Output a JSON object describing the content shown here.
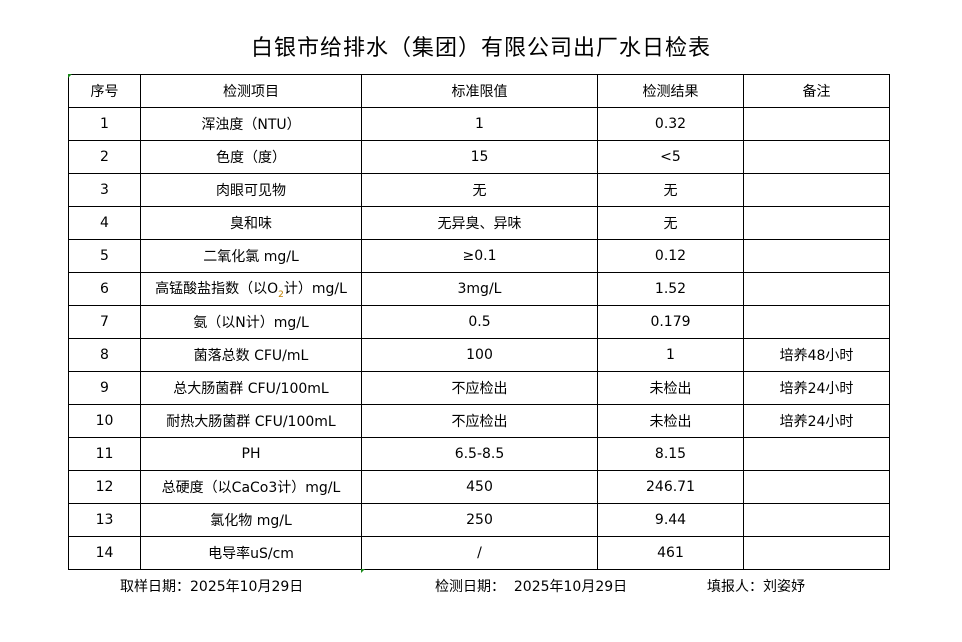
{
  "title": "白银市给排水（集团）有限公司出厂水日检表",
  "headers": [
    "序号",
    "检测项目",
    "标准限值",
    "检测结果",
    "备注"
  ],
  "rows": [
    {
      "no": "1",
      "item": "浑浊度（NTU）",
      "limit": "1",
      "result": "0.32",
      "note": ""
    },
    {
      "no": "2",
      "item": "色度（度）",
      "limit": "15",
      "result": "<5",
      "note": ""
    },
    {
      "no": "3",
      "item": "肉眼可见物",
      "limit": "无",
      "result": "无",
      "note": ""
    },
    {
      "no": "4",
      "item": "臭和味",
      "limit": "无异臭、异味",
      "result": "无",
      "note": ""
    },
    {
      "no": "5",
      "item": "二氧化氯 mg/L",
      "limit": "≥0.1",
      "result": "0.12",
      "note": ""
    },
    {
      "no": "6",
      "item_pre": "高锰酸盐指数（以O",
      "item_sub": "2",
      "item_post": "计）mg/L",
      "limit": "3mg/L",
      "result": "1.52",
      "note": ""
    },
    {
      "no": "7",
      "item": "氨（以N计）mg/L",
      "limit": "0.5",
      "result": "0.179",
      "note": ""
    },
    {
      "no": "8",
      "item": "菌落总数 CFU/mL",
      "limit": "100",
      "result": "1",
      "note": "培养48小时"
    },
    {
      "no": "9",
      "item": "总大肠菌群 CFU/100mL",
      "limit": "不应检出",
      "result": "未检出",
      "note": "培养24小时"
    },
    {
      "no": "10",
      "item": "耐热大肠菌群 CFU/100mL",
      "limit": "不应检出",
      "result": "未检出",
      "note": "培养24小时"
    },
    {
      "no": "11",
      "item": "PH",
      "limit": "6.5-8.5",
      "result": "8.15",
      "note": ""
    },
    {
      "no": "12",
      "item": "总硬度（以CaCo3计）mg/L",
      "limit": "450",
      "result": "246.71",
      "note": ""
    },
    {
      "no": "13",
      "item": "氯化物 mg/L",
      "limit": "250",
      "result": "9.44",
      "note": ""
    },
    {
      "no": "14",
      "item": "电导率uS/cm",
      "limit": "/",
      "result": "461",
      "note": ""
    }
  ],
  "footer": {
    "sampling_date": "取样日期：2025年10月29日",
    "test_date": "检测日期：  2025年10月29日",
    "reporter": "填报人：刘姿妤"
  }
}
